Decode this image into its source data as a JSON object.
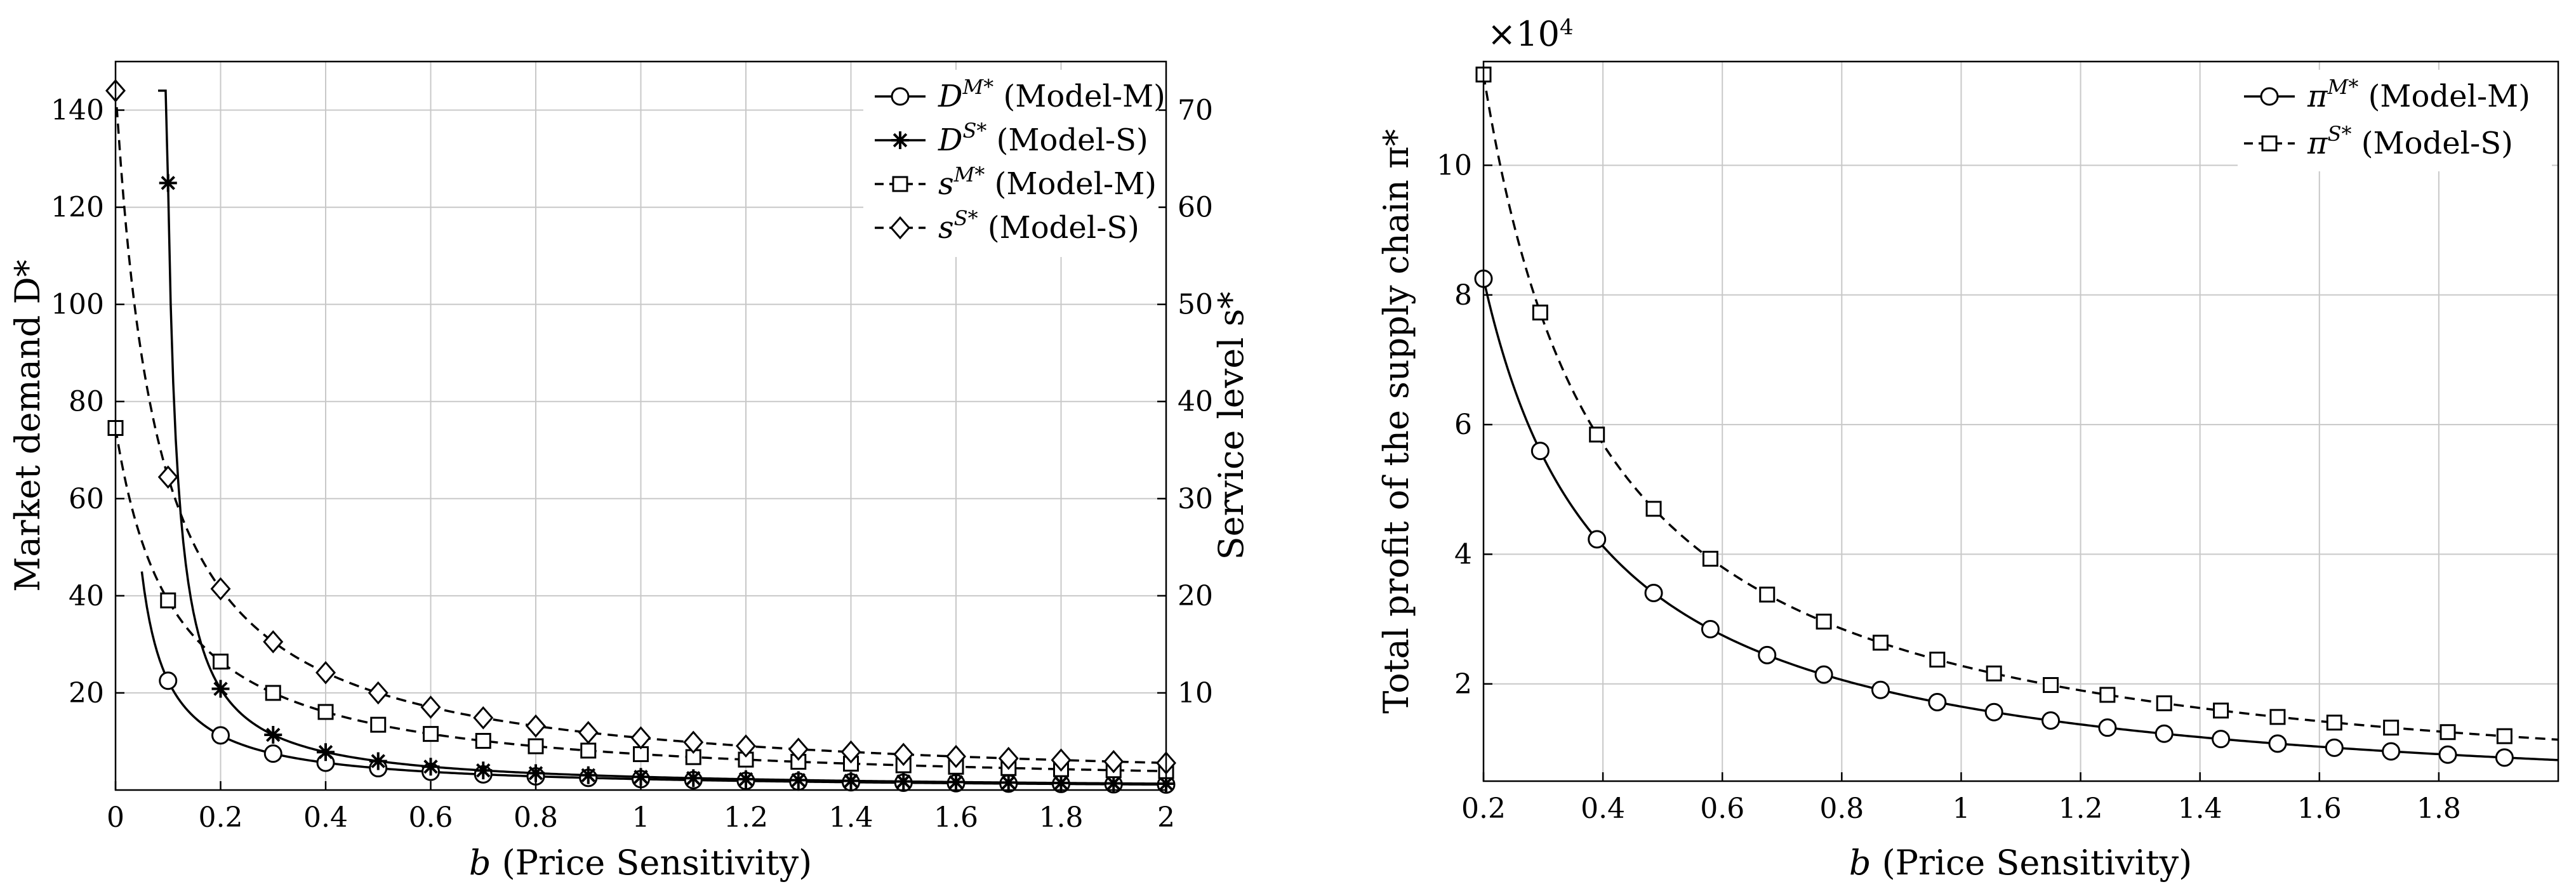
{
  "chart_data": [
    {
      "type": "line",
      "xlabel_var": "b",
      "xlabel_rest": " (Price Sensitivity)",
      "ylabel_left": "Market demand D*",
      "ylabel_right": "Service level s*",
      "xlim": [
        0,
        2
      ],
      "ylim_left": [
        0,
        150
      ],
      "ylim_right": [
        0,
        75
      ],
      "x_ticks": [
        0,
        0.2,
        0.4,
        0.6,
        0.8,
        1,
        1.2,
        1.4,
        1.6,
        1.8,
        2
      ],
      "y_ticks_left": [
        20,
        40,
        60,
        80,
        100,
        120,
        140
      ],
      "y_ticks_right": [
        10,
        20,
        30,
        40,
        50,
        60,
        70
      ],
      "grid": true,
      "legend_position": "top-right",
      "series": [
        {
          "name": "D^M* (Model-M)",
          "base": "D",
          "sup": "M*",
          "tail": " (Model-M)",
          "axis": "left",
          "dash": "solid",
          "marker": "circle",
          "k": 2.25,
          "c": 0,
          "x_start": 0.05,
          "markers_x": [
            0.1,
            0.2,
            0.3,
            0.4,
            0.5,
            0.6,
            0.7,
            0.8,
            0.9,
            1,
            1.1,
            1.2,
            1.3,
            1.4,
            1.5,
            1.6,
            1.7,
            1.8,
            1.9,
            2
          ]
        },
        {
          "name": "D^S* (Model-S)",
          "base": "D",
          "sup": "S*",
          "tail": " (Model-S)",
          "axis": "left",
          "dash": "solid",
          "marker": "star",
          "k": 2.5,
          "c": 0.08,
          "x_start": 0.081,
          "markers_x": [
            0.1,
            0.2,
            0.3,
            0.4,
            0.5,
            0.6,
            0.7,
            0.8,
            0.9,
            1,
            1.1,
            1.2,
            1.3,
            1.4,
            1.5,
            1.6,
            1.7,
            1.8,
            1.9,
            2
          ]
        },
        {
          "name": "s^M* (Model-M)",
          "base": "s",
          "sup": "M*",
          "tail": " (Model-M)",
          "axis": "right",
          "dash": "dashed",
          "marker": "square",
          "k": 4.1,
          "c": -0.11,
          "x_start": 0,
          "markers_x": [
            0,
            0.1,
            0.2,
            0.3,
            0.4,
            0.5,
            0.6,
            0.7,
            0.8,
            0.9,
            1,
            1.1,
            1.2,
            1.3,
            1.4,
            1.5,
            1.6,
            1.7,
            1.8,
            1.9,
            2
          ]
        },
        {
          "name": "s^S* (Model-S)",
          "base": "s",
          "sup": "S*",
          "tail": " (Model-S)",
          "axis": "right",
          "dash": "dashed",
          "marker": "diamond",
          "k": 5.8,
          "c": -0.08,
          "x_start": 0,
          "markers_x": [
            0,
            0.1,
            0.2,
            0.3,
            0.4,
            0.5,
            0.6,
            0.7,
            0.8,
            0.9,
            1,
            1.1,
            1.2,
            1.3,
            1.4,
            1.5,
            1.6,
            1.7,
            1.8,
            1.9,
            2
          ]
        }
      ]
    },
    {
      "type": "line",
      "xlabel_var": "b",
      "xlabel_rest": " (Price Sensitivity)",
      "ylabel": "Total profit of the supply chain π*",
      "y_multiplier": "×10",
      "y_multiplier_exp": "4",
      "xlim": [
        0.2,
        2
      ],
      "ylim": [
        0.5,
        11.6
      ],
      "x_ticks": [
        0.2,
        0.4,
        0.6,
        0.8,
        1,
        1.2,
        1.4,
        1.6,
        1.8
      ],
      "y_ticks": [
        2,
        4,
        6,
        8,
        10
      ],
      "grid": true,
      "legend_position": "top-right",
      "series": [
        {
          "name": "π^M* (Model-M)",
          "base": "π",
          "sup": "M*",
          "tail": " (Model-M)",
          "dash": "solid",
          "marker": "circle",
          "k": 1.65,
          "x_start": 0.2,
          "markers_x": [
            0.2,
            0.295,
            0.39,
            0.485,
            0.58,
            0.675,
            0.77,
            0.865,
            0.96,
            1.055,
            1.15,
            1.245,
            1.34,
            1.435,
            1.53,
            1.625,
            1.72,
            1.815,
            1.91
          ]
        },
        {
          "name": "π^S* (Model-S)",
          "base": "π",
          "sup": "S*",
          "tail": " (Model-S)",
          "dash": "dashed",
          "marker": "square",
          "k": 2.28,
          "x_start": 0.2,
          "markers_x": [
            0.2,
            0.295,
            0.39,
            0.485,
            0.58,
            0.675,
            0.77,
            0.865,
            0.96,
            1.055,
            1.15,
            1.245,
            1.34,
            1.435,
            1.53,
            1.625,
            1.72,
            1.815,
            1.91
          ]
        }
      ]
    }
  ]
}
